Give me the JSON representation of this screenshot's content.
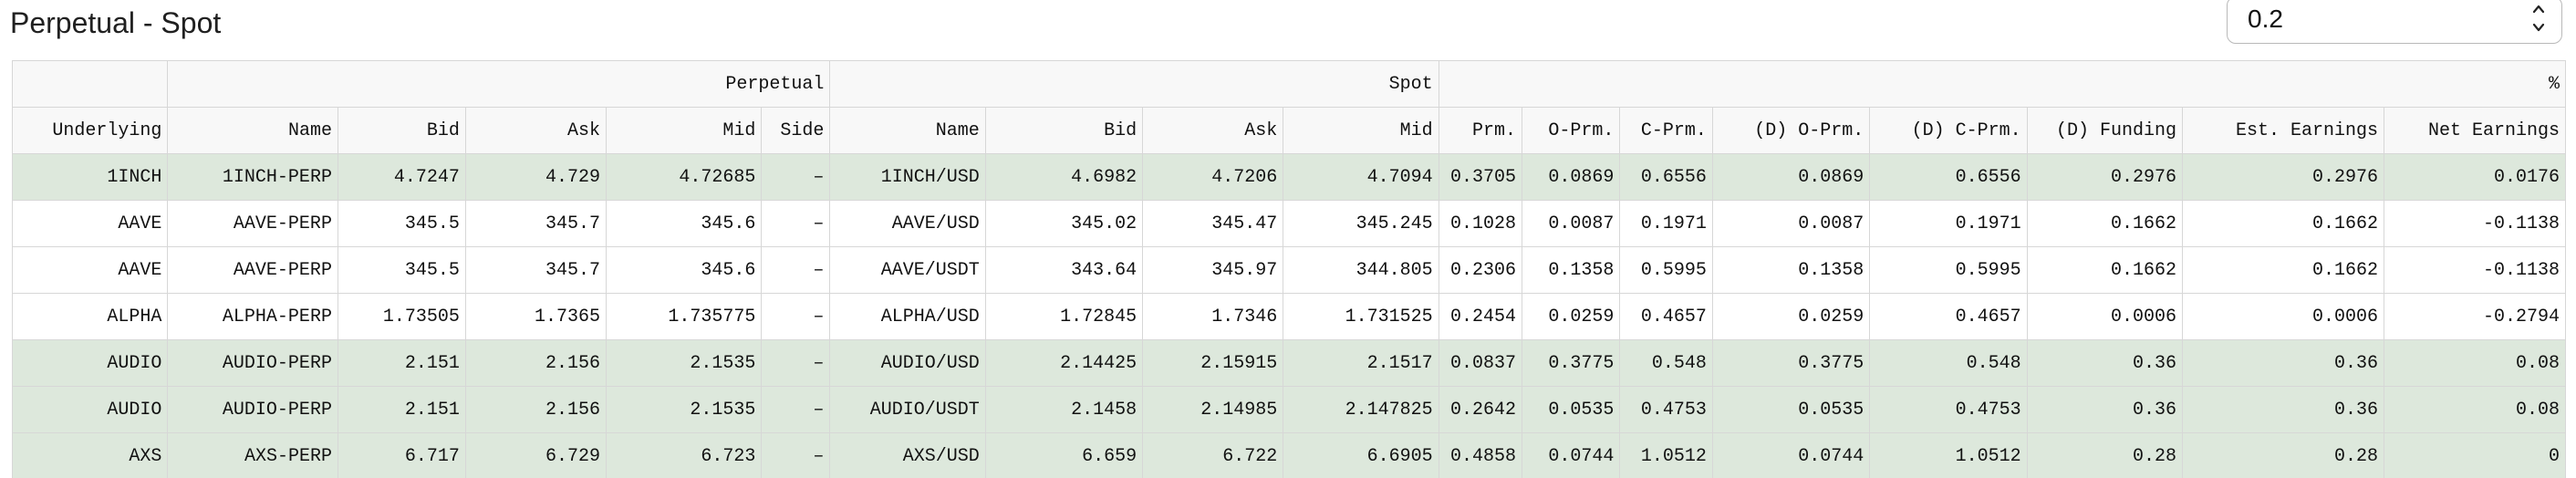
{
  "page": {
    "title": "Perpetual - Spot",
    "threshold_value": "0.2"
  },
  "table": {
    "group_headers": {
      "perpetual": "Perpetual",
      "spot": "Spot",
      "percent": "%"
    },
    "columns": [
      "Underlying",
      "Name",
      "Bid",
      "Ask",
      "Mid",
      "Side",
      "Name",
      "Bid",
      "Ask",
      "Mid",
      "Prm.",
      "O-Prm.",
      "C-Prm.",
      "(D) O-Prm.",
      "(D) C-Prm.",
      "(D) Funding",
      "Est. Earnings",
      "Net Earnings"
    ],
    "rows": [
      {
        "highlight": true,
        "cells": [
          "1INCH",
          "1INCH-PERP",
          "4.7247",
          "4.729",
          "4.72685",
          "–",
          "1INCH/USD",
          "4.6982",
          "4.7206",
          "4.7094",
          "0.3705",
          "0.0869",
          "0.6556",
          "0.0869",
          "0.6556",
          "0.2976",
          "0.2976",
          "0.0176"
        ]
      },
      {
        "highlight": false,
        "cells": [
          "AAVE",
          "AAVE-PERP",
          "345.5",
          "345.7",
          "345.6",
          "–",
          "AAVE/USD",
          "345.02",
          "345.47",
          "345.245",
          "0.1028",
          "0.0087",
          "0.1971",
          "0.0087",
          "0.1971",
          "0.1662",
          "0.1662",
          "-0.1138"
        ]
      },
      {
        "highlight": false,
        "cells": [
          "AAVE",
          "AAVE-PERP",
          "345.5",
          "345.7",
          "345.6",
          "–",
          "AAVE/USDT",
          "343.64",
          "345.97",
          "344.805",
          "0.2306",
          "0.1358",
          "0.5995",
          "0.1358",
          "0.5995",
          "0.1662",
          "0.1662",
          "-0.1138"
        ]
      },
      {
        "highlight": false,
        "cells": [
          "ALPHA",
          "ALPHA-PERP",
          "1.73505",
          "1.7365",
          "1.735775",
          "–",
          "ALPHA/USD",
          "1.72845",
          "1.7346",
          "1.731525",
          "0.2454",
          "0.0259",
          "0.4657",
          "0.0259",
          "0.4657",
          "0.0006",
          "0.0006",
          "-0.2794"
        ]
      },
      {
        "highlight": true,
        "cells": [
          "AUDIO",
          "AUDIO-PERP",
          "2.151",
          "2.156",
          "2.1535",
          "–",
          "AUDIO/USD",
          "2.14425",
          "2.15915",
          "2.1517",
          "0.0837",
          "0.3775",
          "0.548",
          "0.3775",
          "0.548",
          "0.36",
          "0.36",
          "0.08"
        ]
      },
      {
        "highlight": true,
        "cells": [
          "AUDIO",
          "AUDIO-PERP",
          "2.151",
          "2.156",
          "2.1535",
          "–",
          "AUDIO/USDT",
          "2.1458",
          "2.14985",
          "2.147825",
          "0.2642",
          "0.0535",
          "0.4753",
          "0.0535",
          "0.4753",
          "0.36",
          "0.36",
          "0.08"
        ]
      },
      {
        "highlight": true,
        "cells": [
          "AXS",
          "AXS-PERP",
          "6.717",
          "6.729",
          "6.723",
          "–",
          "AXS/USD",
          "6.659",
          "6.722",
          "6.6905",
          "0.4858",
          "0.0744",
          "1.0512",
          "0.0744",
          "1.0512",
          "0.28",
          "0.28",
          "0"
        ]
      }
    ]
  }
}
